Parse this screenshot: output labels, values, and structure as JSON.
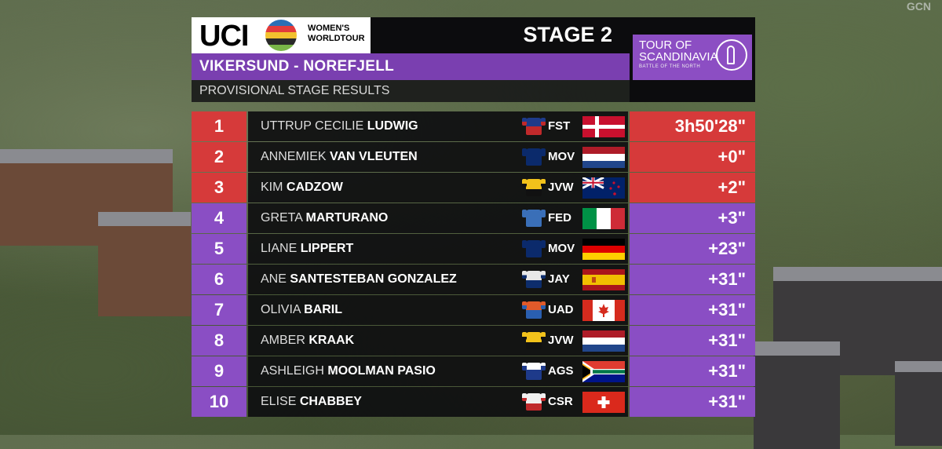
{
  "header": {
    "logo_uci": "UCI",
    "logo_line1": "WOMEN'S",
    "logo_line2": "WORLDTOUR",
    "stage": "STAGE 2",
    "route": "VIKERSUND - NOREFJELL",
    "subtitle": "PROVISIONAL STAGE RESULTS"
  },
  "race_logo": {
    "line1": "TOUR OF",
    "line2": "SCANDINAVIA",
    "tagline": "BATTLE OF THE NORTH"
  },
  "broadcaster": "GCN",
  "colors": {
    "podium": "#d63a3a",
    "rest": "#8a4ec4",
    "route_bar": "#7a3fb0"
  },
  "results": [
    {
      "rank": "1",
      "first": "UTTRUP CECILIE",
      "last": "LUDWIG",
      "team": "FST",
      "flag": "denmark",
      "time": "3h50'28\""
    },
    {
      "rank": "2",
      "first": "ANNEMIEK",
      "last": "VAN VLEUTEN",
      "team": "MOV",
      "flag": "netherlands",
      "time": "+0\""
    },
    {
      "rank": "3",
      "first": "KIM",
      "last": "CADZOW",
      "team": "JVW",
      "flag": "new-zealand",
      "time": "+2\""
    },
    {
      "rank": "4",
      "first": "GRETA",
      "last": "MARTURANO",
      "team": "FED",
      "flag": "italy",
      "time": "+3\""
    },
    {
      "rank": "5",
      "first": "LIANE",
      "last": "LIPPERT",
      "team": "MOV",
      "flag": "germany",
      "time": "+23\""
    },
    {
      "rank": "6",
      "first": "ANE",
      "last": "SANTESTEBAN GONZALEZ",
      "team": "JAY",
      "flag": "spain",
      "time": "+31\""
    },
    {
      "rank": "7",
      "first": "OLIVIA",
      "last": "BARIL",
      "team": "UAD",
      "flag": "canada",
      "time": "+31\""
    },
    {
      "rank": "8",
      "first": "AMBER",
      "last": "KRAAK",
      "team": "JVW",
      "flag": "netherlands",
      "time": "+31\""
    },
    {
      "rank": "9",
      "first": "ASHLEIGH",
      "last": "MOOLMAN PASIO",
      "team": "AGS",
      "flag": "south-africa",
      "time": "+31\""
    },
    {
      "rank": "10",
      "first": "ELISE",
      "last": "CHABBEY",
      "team": "CSR",
      "flag": "switzerland",
      "time": "+31\""
    }
  ]
}
